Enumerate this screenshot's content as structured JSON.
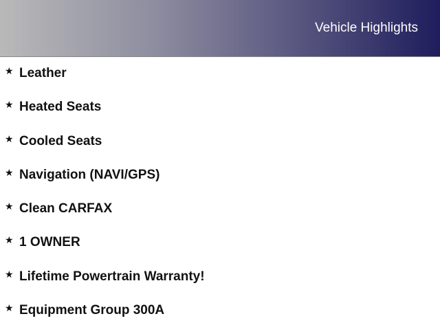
{
  "header": {
    "title": "Vehicle Highlights"
  },
  "colors": {
    "gradient_start": "#b9b9b9",
    "gradient_end": "#1f1d5c"
  },
  "highlights": [
    {
      "icon": "star-icon",
      "label": "Leather"
    },
    {
      "icon": "star-icon",
      "label": "Heated Seats"
    },
    {
      "icon": "star-icon",
      "label": "Cooled Seats"
    },
    {
      "icon": "star-icon",
      "label": "Navigation (NAVI/GPS)"
    },
    {
      "icon": "star-icon",
      "label": "Clean CARFAX"
    },
    {
      "icon": "star-icon",
      "label": "1 OWNER"
    },
    {
      "icon": "star-icon",
      "label": "Lifetime Powertrain Warranty!"
    },
    {
      "icon": "star-icon",
      "label": "Equipment Group 300A"
    }
  ]
}
